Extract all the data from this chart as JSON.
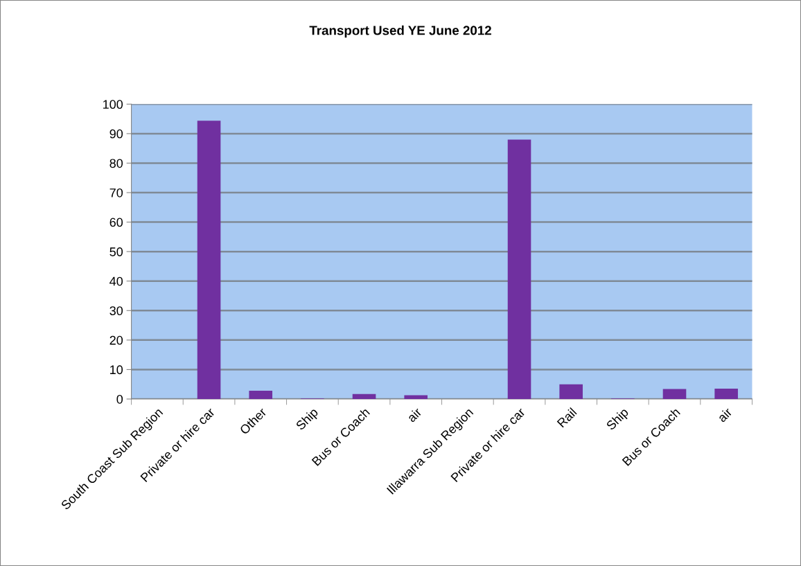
{
  "chart_data": {
    "type": "bar",
    "title": "Transport Used YE June 2012",
    "categories": [
      "South Coast Sub Region",
      "Private or hire car",
      "Other",
      "Ship",
      "Bus or Coach",
      "air",
      "Illawarra Sub Region",
      "Private or hire car",
      "Rail",
      "Ship",
      "Bus or Coach",
      "air"
    ],
    "values": [
      null,
      94.4,
      2.8,
      0.2,
      1.7,
      1.3,
      null,
      88.0,
      5.0,
      0.2,
      3.4,
      3.5
    ],
    "color": "#7030a0",
    "ylim": [
      0,
      100
    ],
    "yticks": [
      0,
      10,
      20,
      30,
      40,
      50,
      60,
      70,
      80,
      90,
      100
    ],
    "grid": "y",
    "legend": false
  }
}
